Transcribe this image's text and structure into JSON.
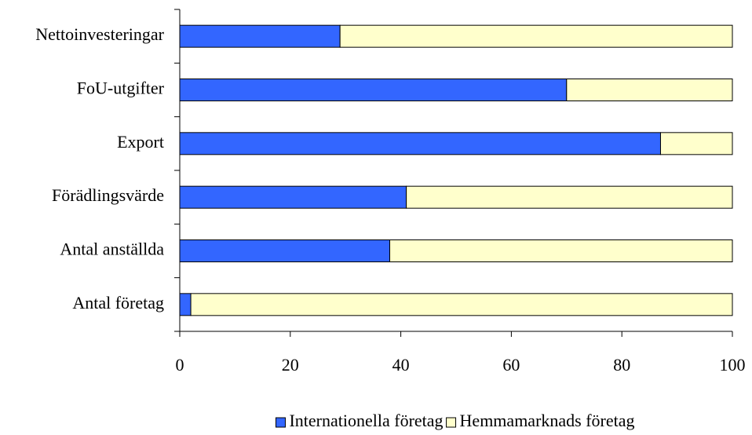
{
  "chart_data": {
    "type": "stacked_bar_horizontal",
    "categories": [
      "Nettoinvesteringar",
      "FoU-utgifter",
      "Export",
      "Förädlingsvärde",
      "Antal anställda",
      "Antal företag"
    ],
    "series": [
      {
        "name": "Internationella företag",
        "color": "#3366ff",
        "values": [
          29,
          70,
          87,
          41,
          38,
          2
        ]
      },
      {
        "name": "Hemmamarknads företag",
        "color": "#ffffcc",
        "values": [
          71,
          30,
          13,
          59,
          62,
          98
        ]
      }
    ],
    "xlim": [
      0,
      100
    ],
    "xticks": [
      0,
      20,
      40,
      60,
      80,
      100
    ],
    "grid": false,
    "legend": "bottom"
  }
}
